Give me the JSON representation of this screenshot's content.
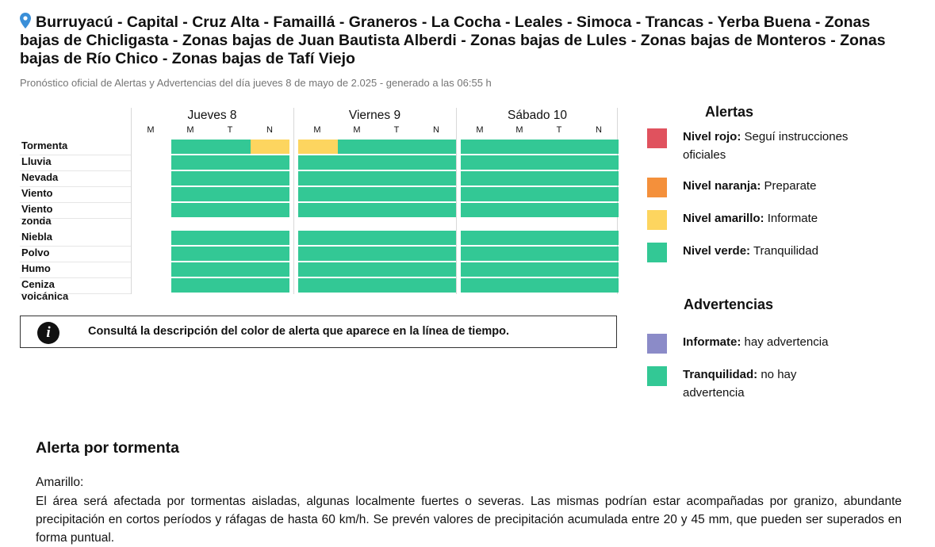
{
  "header": {
    "location_title": "Burruyacú - Capital - Cruz Alta - Famaillá - Graneros - La Cocha - Leales - Simoca - Trancas - Yerba Buena - Zonas bajas de Chicligasta - Zonas bajas de Juan Bautista Alberdi - Zonas bajas de Lules - Zonas bajas de Monteros - Zonas bajas de Río Chico - Zonas bajas de Tafí Viejo",
    "subtitle": "Pronóstico oficial de Alertas y Advertencias del día jueves 8 de mayo de 2.025 - generado a las 06:55 h"
  },
  "timeline": {
    "days": [
      {
        "label": "Jueves 8",
        "slots": [
          "M",
          "M",
          "T",
          "N"
        ]
      },
      {
        "label": "Viernes 9",
        "slots": [
          "M",
          "M",
          "T",
          "N"
        ]
      },
      {
        "label": "Sábado 10",
        "slots": [
          "M",
          "M",
          "T",
          "N"
        ]
      }
    ],
    "colors": {
      "verde": "#33c895",
      "amarillo": "#fdd55f",
      "naranja": "#f4903b",
      "rojo": "#e0525e",
      "violeta": "#8b8bc8",
      "vacio": "#ffffff"
    },
    "alert_rows": [
      {
        "label": "Tormenta",
        "levels": [
          "vacio",
          "verde",
          "verde",
          "amarillo",
          "amarillo",
          "verde",
          "verde",
          "verde",
          "verde",
          "verde",
          "verde",
          "verde"
        ]
      },
      {
        "label": "Lluvia",
        "levels": [
          "vacio",
          "verde",
          "verde",
          "verde",
          "verde",
          "verde",
          "verde",
          "verde",
          "verde",
          "verde",
          "verde",
          "verde"
        ]
      },
      {
        "label": "Nevada",
        "levels": [
          "vacio",
          "verde",
          "verde",
          "verde",
          "verde",
          "verde",
          "verde",
          "verde",
          "verde",
          "verde",
          "verde",
          "verde"
        ]
      },
      {
        "label": "Viento",
        "levels": [
          "vacio",
          "verde",
          "verde",
          "verde",
          "verde",
          "verde",
          "verde",
          "verde",
          "verde",
          "verde",
          "verde",
          "verde"
        ]
      },
      {
        "label": "Viento zonda",
        "levels": [
          "vacio",
          "verde",
          "verde",
          "verde",
          "verde",
          "verde",
          "verde",
          "verde",
          "verde",
          "verde",
          "verde",
          "verde"
        ]
      }
    ],
    "warning_rows": [
      {
        "label": "Niebla",
        "levels": [
          "vacio",
          "verde",
          "verde",
          "verde",
          "verde",
          "verde",
          "verde",
          "verde",
          "verde",
          "verde",
          "verde",
          "verde"
        ]
      },
      {
        "label": "Polvo",
        "levels": [
          "vacio",
          "verde",
          "verde",
          "verde",
          "verde",
          "verde",
          "verde",
          "verde",
          "verde",
          "verde",
          "verde",
          "verde"
        ]
      },
      {
        "label": "Humo",
        "levels": [
          "vacio",
          "verde",
          "verde",
          "verde",
          "verde",
          "verde",
          "verde",
          "verde",
          "verde",
          "verde",
          "verde",
          "verde"
        ]
      },
      {
        "label": "Ceniza volcánica",
        "levels": [
          "vacio",
          "verde",
          "verde",
          "verde",
          "verde",
          "verde",
          "verde",
          "verde",
          "verde",
          "verde",
          "verde",
          "verde"
        ]
      }
    ]
  },
  "info_box": {
    "icon": "info-icon",
    "icon_glyph": "i",
    "text": "Consultá la descripción del color de alerta que aparece en la línea de tiempo."
  },
  "legend": {
    "alerts_title": "Alertas",
    "alerts": [
      {
        "strong": "Nivel rojo:",
        "text": " Seguí instrucciones oficiales",
        "color": "#e0525e"
      },
      {
        "strong": "Nivel naranja:",
        "text": " Preparate",
        "color": "#f4903b"
      },
      {
        "strong": "Nivel amarillo:",
        "text": " Informate",
        "color": "#fdd55f"
      },
      {
        "strong": "Nivel verde:",
        "text": " Tranquilidad",
        "color": "#33c895"
      }
    ],
    "warnings_title": "Advertencias",
    "warnings": [
      {
        "strong": "Informate:",
        "text": " hay advertencia",
        "color": "#8b8bc8"
      },
      {
        "strong": "Tranquilidad:",
        "text": " no hay advertencia",
        "color": "#33c895"
      }
    ]
  },
  "detail": {
    "title": "Alerta por tormenta",
    "level_label": "Amarillo:",
    "body": "El área será afectada por tormentas aisladas, algunas localmente fuertes o severas. Las mismas podrían estar acompañadas por granizo, abundante precipitación en cortos períodos y ráfagas de hasta 60 km/h. Se prevén valores de precipitación acumulada entre 20 y 45 mm, que pueden ser superados en forma puntual."
  }
}
